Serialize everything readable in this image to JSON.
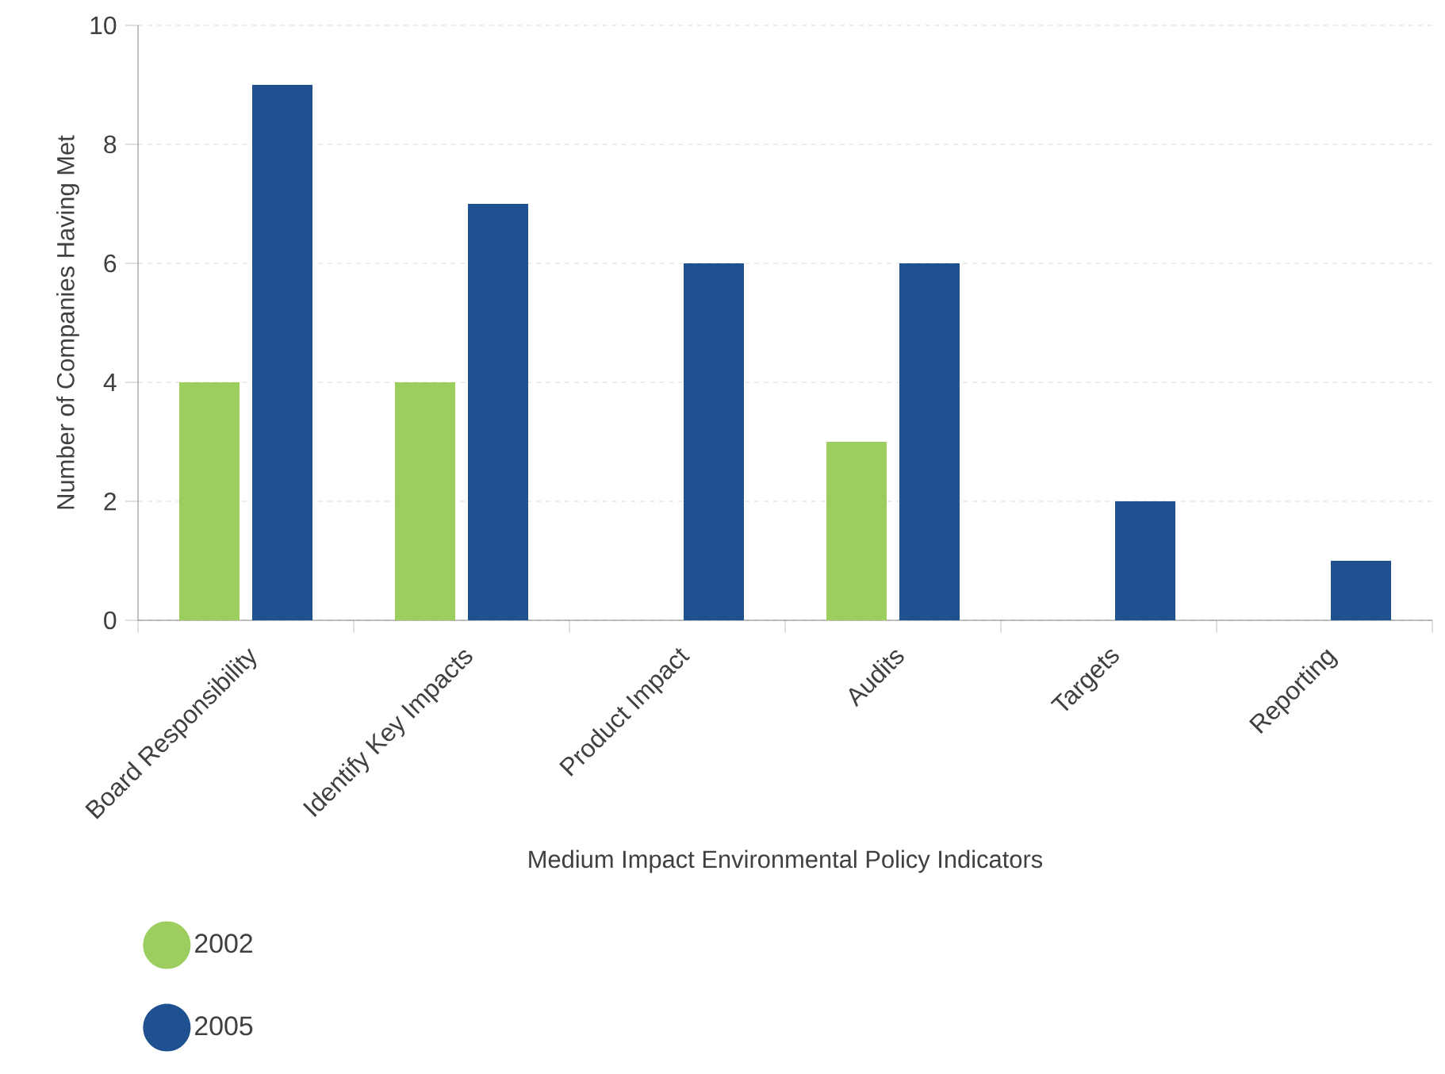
{
  "chart_data": {
    "type": "bar",
    "xlabel": "Medium Impact Environmental Policy Indicators",
    "ylabel": "Number of Companies Having Met",
    "categories": [
      "Board Responsibility",
      "Identify Key Impacts",
      "Product Impact",
      "Audits",
      "Targets",
      "Reporting"
    ],
    "series": [
      {
        "name": "2002",
        "color": "#9ccd5e",
        "values": [
          4,
          4,
          0,
          3,
          0,
          0
        ]
      },
      {
        "name": "2005",
        "color": "#1f5191",
        "values": [
          9,
          7,
          6,
          6,
          2,
          1
        ]
      }
    ],
    "ylim": [
      0,
      10
    ],
    "yticks": [
      0,
      2,
      4,
      6,
      8,
      10
    ],
    "grid": "y",
    "legend": "bottom left"
  }
}
